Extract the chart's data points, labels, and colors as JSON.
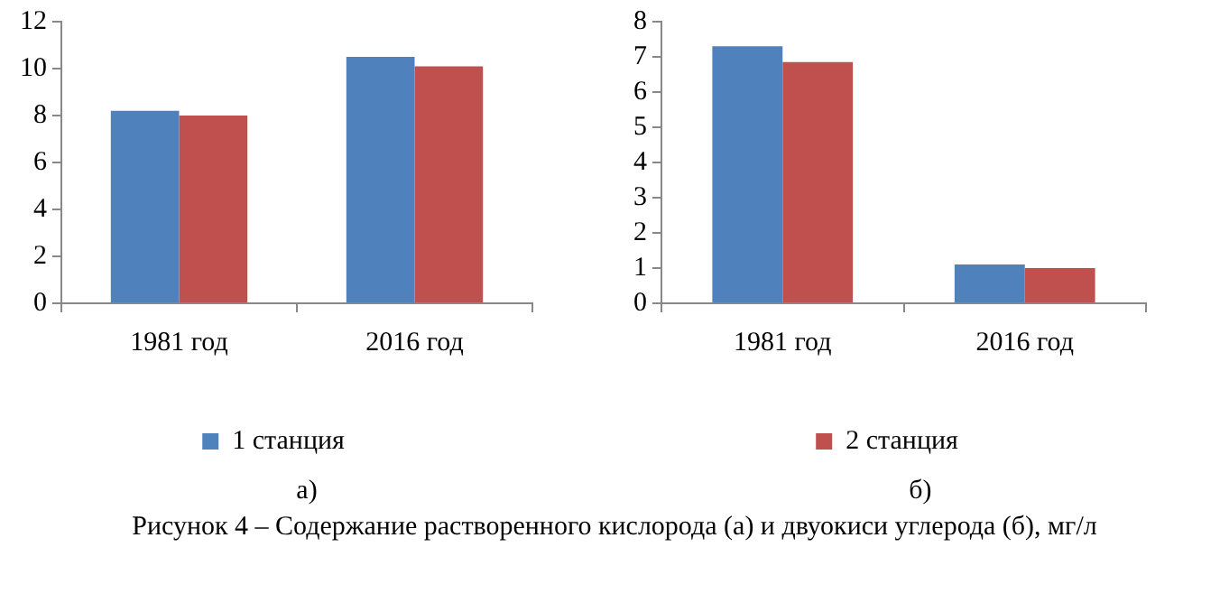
{
  "chart_data": [
    {
      "type": "bar",
      "categories": [
        "1981 год",
        "2016 год"
      ],
      "series": [
        {
          "name": "1 станция",
          "color": "#4f81bd",
          "values": [
            8.2,
            10.5
          ]
        },
        {
          "color": "#c0504d",
          "values": [
            8.0,
            10.1
          ]
        }
      ],
      "ylim": [
        0,
        12
      ],
      "yticks": [
        0,
        2,
        4,
        6,
        8,
        10,
        12
      ],
      "grid": false,
      "legend": "bottom",
      "annotations": [
        "а)"
      ]
    },
    {
      "type": "bar",
      "categories": [
        "1981 год",
        "2016 год"
      ],
      "series": [
        {
          "color": "#4f81bd",
          "values": [
            7.3,
            1.1
          ]
        },
        {
          "name": "2 станция",
          "color": "#c0504d",
          "values": [
            6.85,
            1.0
          ]
        }
      ],
      "ylim": [
        0,
        8
      ],
      "yticks": [
        0,
        1,
        2,
        3,
        4,
        5,
        6,
        7,
        8
      ],
      "grid": false,
      "legend": "bottom",
      "annotations": [
        "б)",
        "Рисунок 4 – Содержание растворенного кислорода (а) и двуокиси углерода (б), мг/л"
      ]
    }
  ]
}
